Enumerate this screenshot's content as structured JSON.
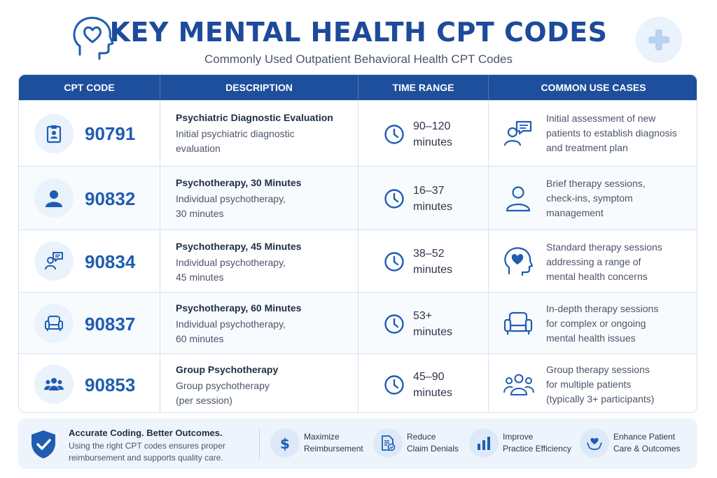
{
  "header": {
    "title": "KEY MENTAL HEALTH CPT CODES",
    "subtitle": "Commonly Used Outpatient Behavioral Health CPT Codes",
    "left_icon": "head-heart-icon",
    "right_icon": "plus-icon"
  },
  "table": {
    "headers": [
      "CPT CODE",
      "DESCRIPTION",
      "TIME RANGE",
      "COMMON USE CASES"
    ],
    "rows": [
      {
        "code": "90791",
        "code_icon": "clipboard-icon",
        "desc_title": "Psychiatric Diagnostic Evaluation",
        "desc_line1": "Initial psychiatric diagnostic",
        "desc_line2": "evaluation",
        "time_line1": "90–120",
        "time_line2": "minutes",
        "use_icon": "person-chat-icon",
        "use_line1": "Initial assessment of new",
        "use_line2": "patients to establish diagnosis",
        "use_line3": "and treatment plan"
      },
      {
        "code": "90832",
        "code_icon": "person-icon",
        "desc_title": "Psychotherapy, 30 Minutes",
        "desc_line1": "Individual psychotherapy,",
        "desc_line2": "30 minutes",
        "time_line1": "16–37",
        "time_line2": "minutes",
        "use_icon": "person-outline-icon",
        "use_line1": "Brief therapy sessions,",
        "use_line2": "check-ins, symptom",
        "use_line3": "management"
      },
      {
        "code": "90834",
        "code_icon": "person-chat-icon",
        "desc_title": "Psychotherapy, 45 Minutes",
        "desc_line1": "Individual psychotherapy,",
        "desc_line2": "45 minutes",
        "time_line1": "38–52",
        "time_line2": "minutes",
        "use_icon": "head-heart-icon",
        "use_line1": "Standard therapy sessions",
        "use_line2": "addressing a range of",
        "use_line3": "mental health concerns"
      },
      {
        "code": "90837",
        "code_icon": "armchair-icon",
        "desc_title": "Psychotherapy, 60 Minutes",
        "desc_line1": "Individual psychotherapy,",
        "desc_line2": "60 minutes",
        "time_line1": "53+",
        "time_line2": "minutes",
        "use_icon": "armchair-icon",
        "use_line1": "In-depth therapy sessions",
        "use_line2": "for complex or ongoing",
        "use_line3": "mental health issues"
      },
      {
        "code": "90853",
        "code_icon": "group-icon",
        "desc_title": "Group Psychotherapy",
        "desc_line1": "Group psychotherapy",
        "desc_line2": "(per session)",
        "time_line1": "45–90",
        "time_line2": "minutes",
        "use_icon": "group-outline-icon",
        "use_line1": "Group therapy sessions",
        "use_line2": "for multiple patients",
        "use_line3": "(typically 3+ participants)"
      }
    ]
  },
  "footer": {
    "title": "Accurate Coding. Better Outcomes.",
    "text_line1": "Using the right CPT codes ensures proper",
    "text_line2": "reimbursement and supports quality care.",
    "benefits": [
      {
        "icon": "dollar-icon",
        "line1": "Maximize",
        "line2": "Reimbursement"
      },
      {
        "icon": "document-check-icon",
        "line1": "Reduce",
        "line2": "Claim Denials"
      },
      {
        "icon": "bar-chart-icon",
        "line1": "Improve",
        "line2": "Practice Efficiency"
      },
      {
        "icon": "heart-hands-icon",
        "line1": "Enhance Patient",
        "line2": "Care & Outcomes"
      }
    ]
  },
  "colors": {
    "primary": "#1e4f9c",
    "accent": "#1f5db2",
    "icon_bg": "#eaf2fb"
  }
}
